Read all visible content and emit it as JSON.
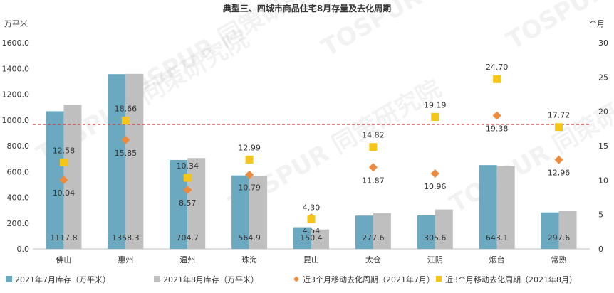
{
  "chart_data": {
    "type": "bar",
    "title": "典型三、四城市商品住宅8月存量及去化周期",
    "categories": [
      "佛山",
      "惠州",
      "温州",
      "珠海",
      "昆山",
      "太仓",
      "江阴",
      "烟台",
      "常熟"
    ],
    "y_left": {
      "unit_label": "万平米",
      "ylim": [
        0,
        1600
      ],
      "ticks": [
        "0.0",
        "200.0",
        "400.0",
        "600.0",
        "800.0",
        "1000.0",
        "1200.0",
        "1400.0",
        "1600.0"
      ]
    },
    "y_right": {
      "unit_label": "个月",
      "ylim": [
        0,
        30
      ],
      "ticks": [
        "0",
        "5",
        "10",
        "15",
        "20",
        "25",
        "30"
      ]
    },
    "grid": false,
    "reference_line": {
      "axis": "left",
      "value": 965,
      "style": "dashed",
      "color": "#d9363e"
    },
    "series": [
      {
        "name": "2021年7月库存（万平米）",
        "type": "bar",
        "axis": "left",
        "color": "#6aa9bf",
        "values": [
          1068,
          1356,
          690,
          570,
          168,
          258,
          260,
          650,
          283
        ]
      },
      {
        "name": "2021年8月库存（万平米）",
        "type": "bar",
        "axis": "left",
        "color": "#bfbfbf",
        "values": [
          1117.8,
          1358.3,
          704.7,
          564.9,
          150.4,
          277.6,
          305.6,
          643.1,
          297.6
        ],
        "labels": [
          "1117.8",
          "1358.3",
          "704.7",
          "564.9",
          "150.4",
          "277.6",
          "305.6",
          "643.1",
          "297.6"
        ]
      },
      {
        "name": "近3个月移动去化周期（2021年7月）",
        "type": "scatter",
        "axis": "right",
        "marker": "diamond",
        "color": "#ee8a3c",
        "values": [
          10.04,
          15.85,
          8.57,
          10.79,
          4.54,
          11.87,
          10.96,
          19.38,
          12.96
        ],
        "labels": [
          "10.04",
          "15.85",
          "8.57",
          "10.79",
          "4.54",
          "11.87",
          "10.96",
          "19.38",
          "12.96"
        ]
      },
      {
        "name": "近3个月移动去化周期（2021年8月）",
        "type": "scatter",
        "axis": "right",
        "marker": "square",
        "color": "#f5c518",
        "values": [
          12.58,
          18.66,
          10.34,
          12.99,
          4.3,
          14.82,
          19.19,
          24.7,
          17.72
        ],
        "labels": [
          "12.58",
          "18.66",
          "10.34",
          "12.99",
          "4.30",
          "14.82",
          "19.19",
          "24.70",
          "17.72"
        ]
      }
    ],
    "legend_position": "bottom",
    "watermark": "TOSPUR 同策研究院"
  }
}
